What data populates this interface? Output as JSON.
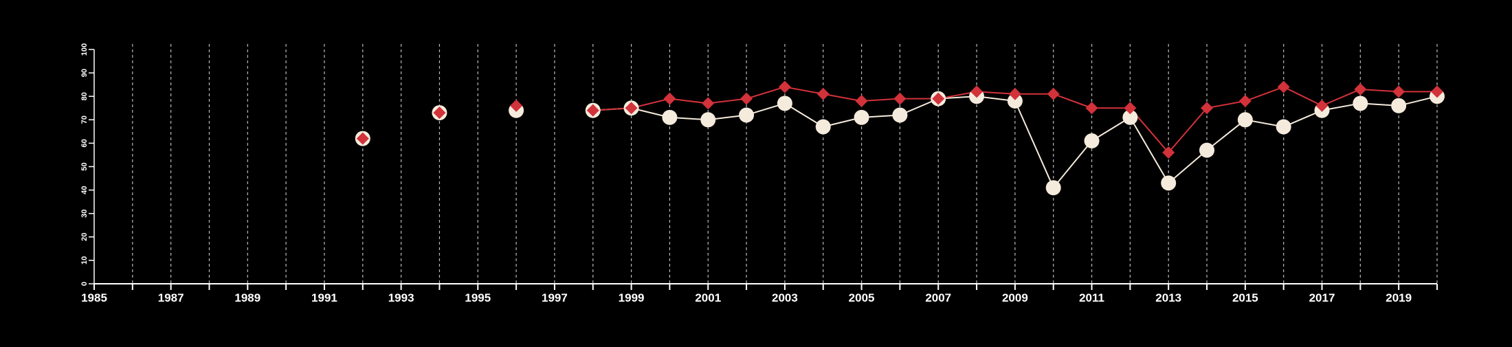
{
  "chart_data": {
    "type": "line",
    "title": "",
    "xlabel": "",
    "ylabel": "",
    "xlim": [
      1985,
      2020
    ],
    "ylim": [
      0,
      100
    ],
    "x_ticks_labeled": [
      "1985",
      "1987",
      "1989",
      "1991",
      "1993",
      "1995",
      "1997",
      "1999",
      "2001",
      "2003",
      "2005",
      "2007",
      "2009",
      "2011",
      "2013",
      "2015",
      "2017",
      "2019"
    ],
    "y_ticks": [
      "0",
      "10",
      "20",
      "30",
      "40",
      "50",
      "60",
      "70",
      "80",
      "90",
      "100"
    ],
    "grid": "vertical dashed lines at every year",
    "colors": {
      "background": "#000000",
      "axis": "#ffffff",
      "grid": "#bbbbbb",
      "series_circle": "#f5ebdc",
      "series_diamond": "#d2323a"
    },
    "series": [
      {
        "marker": "circle",
        "color": "#f5ebdc",
        "points": [
          {
            "x": 1992,
            "y": 62
          },
          {
            "x": 1994,
            "y": 73
          },
          {
            "x": 1996,
            "y": 74
          },
          {
            "x": 1998,
            "y": 74
          },
          {
            "x": 1999,
            "y": 75
          },
          {
            "x": 2000,
            "y": 71
          },
          {
            "x": 2001,
            "y": 70
          },
          {
            "x": 2002,
            "y": 72
          },
          {
            "x": 2003,
            "y": 77
          },
          {
            "x": 2004,
            "y": 67
          },
          {
            "x": 2005,
            "y": 71
          },
          {
            "x": 2006,
            "y": 72
          },
          {
            "x": 2007,
            "y": 79
          },
          {
            "x": 2008,
            "y": 80
          },
          {
            "x": 2009,
            "y": 78
          },
          {
            "x": 2010,
            "y": 41
          },
          {
            "x": 2011,
            "y": 61
          },
          {
            "x": 2012,
            "y": 71
          },
          {
            "x": 2013,
            "y": 43
          },
          {
            "x": 2014,
            "y": 57
          },
          {
            "x": 2015,
            "y": 70
          },
          {
            "x": 2016,
            "y": 67
          },
          {
            "x": 2017,
            "y": 74
          },
          {
            "x": 2018,
            "y": 77
          },
          {
            "x": 2019,
            "y": 76
          },
          {
            "x": 2020,
            "y": 80
          }
        ]
      },
      {
        "marker": "diamond",
        "color": "#d2323a",
        "points": [
          {
            "x": 1992,
            "y": 62
          },
          {
            "x": 1994,
            "y": 73
          },
          {
            "x": 1996,
            "y": 76
          },
          {
            "x": 1998,
            "y": 74
          },
          {
            "x": 1999,
            "y": 75
          },
          {
            "x": 2000,
            "y": 79
          },
          {
            "x": 2001,
            "y": 77
          },
          {
            "x": 2002,
            "y": 79
          },
          {
            "x": 2003,
            "y": 84
          },
          {
            "x": 2004,
            "y": 81
          },
          {
            "x": 2005,
            "y": 78
          },
          {
            "x": 2006,
            "y": 79
          },
          {
            "x": 2007,
            "y": 79
          },
          {
            "x": 2008,
            "y": 82
          },
          {
            "x": 2009,
            "y": 81
          },
          {
            "x": 2010,
            "y": 81
          },
          {
            "x": 2011,
            "y": 75
          },
          {
            "x": 2012,
            "y": 75
          },
          {
            "x": 2013,
            "y": 56
          },
          {
            "x": 2014,
            "y": 75
          },
          {
            "x": 2015,
            "y": 78
          },
          {
            "x": 2016,
            "y": 84
          },
          {
            "x": 2017,
            "y": 76
          },
          {
            "x": 2018,
            "y": 83
          },
          {
            "x": 2019,
            "y": 82
          },
          {
            "x": 2020,
            "y": 82
          }
        ]
      }
    ]
  }
}
